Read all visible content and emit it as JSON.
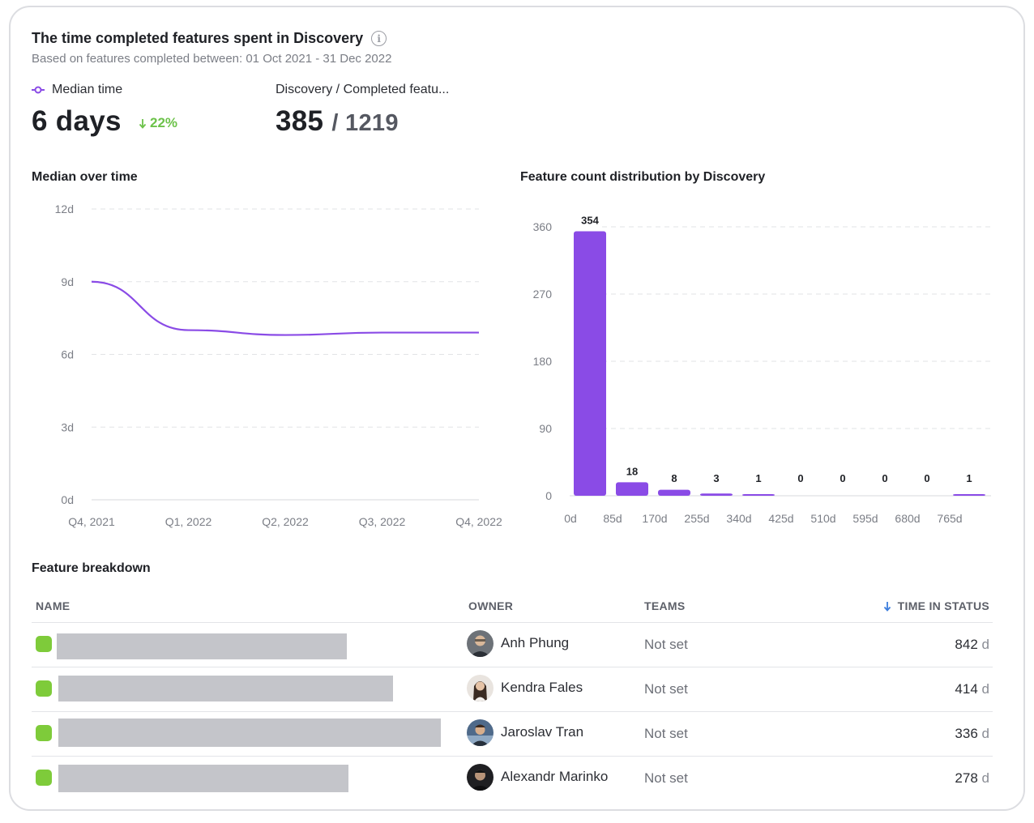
{
  "header": {
    "title": "The time completed features spent in Discovery",
    "subtitle": "Based on features completed between: 01 Oct 2021 - 31 Dec 2022",
    "info_icon": "info-icon"
  },
  "kpis": {
    "median_label": "Median time",
    "median_value": "6 days",
    "median_delta": "22%",
    "median_delta_direction": "down",
    "ratio_label": "Discovery / Completed featu...",
    "ratio_numerator": "385",
    "ratio_denominator": "/ 1219"
  },
  "colors": {
    "accent": "#8a4be6",
    "positive": "#6cc24a",
    "status_green": "#7ecb3a"
  },
  "median_chart": {
    "title": "Median over time",
    "y_ticks": [
      "12d",
      "9d",
      "6d",
      "3d",
      "0d"
    ],
    "x_ticks": [
      "Q4, 2021",
      "Q1, 2022",
      "Q2, 2022",
      "Q3, 2022",
      "Q4, 2022"
    ]
  },
  "dist_chart": {
    "title": "Feature count distribution by Discovery",
    "y_ticks": [
      "360",
      "270",
      "180",
      "90",
      "0"
    ],
    "x_ticks": [
      "0d",
      "85d",
      "170d",
      "255d",
      "340d",
      "425d",
      "510d",
      "595d",
      "680d",
      "765d"
    ]
  },
  "chart_data": [
    {
      "type": "line",
      "title": "Median over time",
      "xlabel": "",
      "ylabel": "",
      "x": [
        "Q4, 2021",
        "Q1, 2022",
        "Q2, 2022",
        "Q3, 2022",
        "Q4, 2022"
      ],
      "y_unit": "days",
      "ylim": [
        0,
        12
      ],
      "grid": true,
      "series": [
        {
          "values": [
            9.0,
            7.0,
            6.8,
            6.9,
            6.9
          ]
        }
      ]
    },
    {
      "type": "bar",
      "title": "Feature count distribution by Discovery",
      "xlabel": "",
      "ylabel": "",
      "categories": [
        "0d",
        "85d",
        "170d",
        "255d",
        "340d",
        "425d",
        "510d",
        "595d",
        "680d",
        "765d"
      ],
      "values": [
        354,
        18,
        8,
        3,
        1,
        0,
        0,
        0,
        0,
        1
      ],
      "ylim": [
        0,
        360
      ],
      "grid": true
    }
  ],
  "table": {
    "title": "Feature breakdown",
    "columns": {
      "name": "NAME",
      "owner": "OWNER",
      "teams": "TEAMS",
      "time": "TIME IN STATUS"
    },
    "sort_icon": "arrow-down-icon",
    "rows": [
      {
        "owner": "Anh Phung",
        "teams": "Not set",
        "time_value": "842",
        "time_unit": "d",
        "name_fill": 0.72
      },
      {
        "owner": "Kendra Fales",
        "teams": "Not set",
        "time_value": "414",
        "time_unit": "d",
        "name_fill": 0.83
      },
      {
        "owner": "Jaroslav Tran",
        "teams": "Not set",
        "time_value": "336",
        "time_unit": "d",
        "name_fill": 0.95
      },
      {
        "owner": "Alexandr Marinko",
        "teams": "Not set",
        "time_value": "278",
        "time_unit": "d",
        "name_fill": 0.72
      }
    ]
  }
}
